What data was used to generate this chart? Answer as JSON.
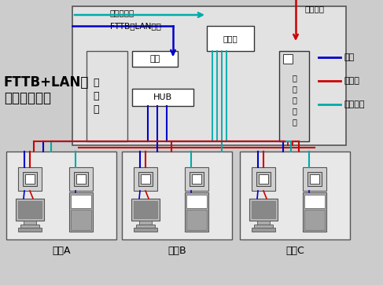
{
  "bg_color": "#cccccc",
  "title_line1": "FTTB+LAN布",
  "title_line2": "线基本逻辑图",
  "legend_net": "网线",
  "legend_phone": "电话线",
  "legend_cable": "有线电视",
  "blue": "#0000cc",
  "red": "#cc0000",
  "green": "#00aaaa",
  "dark_green": "#009900",
  "label_cable_in": "有线通进线",
  "label_fttb_in": "FTTB＋LAN进线",
  "label_phone_in": "电话进线",
  "label_dist": "分配器",
  "label_weak": "弱\n电\n筱",
  "label_router": "路由",
  "label_hub": "HUB",
  "label_phone_switch": "电\n话\n交\n换\n机",
  "label_room_a": "房间A",
  "label_room_b": "房间B",
  "label_room_c": "房间C"
}
